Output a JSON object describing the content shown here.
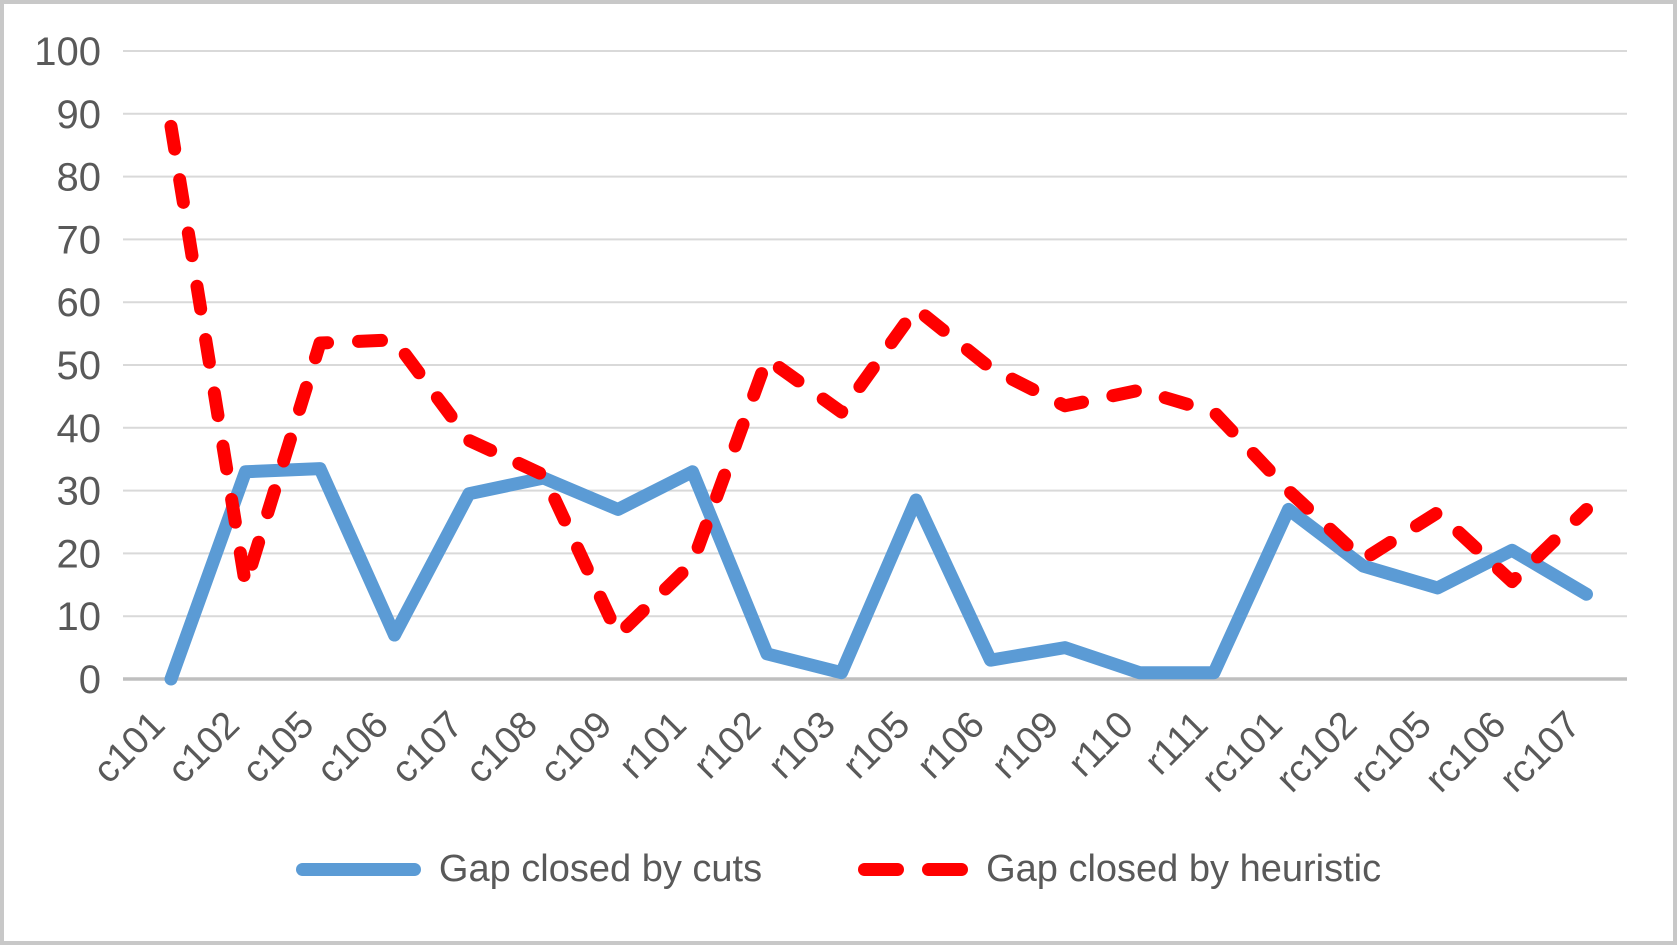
{
  "chart_data": {
    "type": "line",
    "title": "",
    "xlabel": "",
    "ylabel": "",
    "categories": [
      "c101",
      "c102",
      "c105",
      "c106",
      "c107",
      "c108",
      "c109",
      "r101",
      "r102",
      "r103",
      "r105",
      "r106",
      "r109",
      "r110",
      "r111",
      "rc101",
      "rc102",
      "rc105",
      "rc106",
      "rc107"
    ],
    "series": [
      {
        "name": "Gap closed by cuts",
        "color": "#5B9BD5",
        "style": "solid",
        "values": [
          0,
          33,
          33.5,
          7,
          29.5,
          32,
          27,
          33,
          4,
          1,
          28.5,
          3,
          5,
          1,
          1,
          27,
          18,
          14.5,
          20.5,
          13.5
        ]
      },
      {
        "name": "Gap closed by heuristic",
        "color": "#FF0000",
        "style": "dashed",
        "values": [
          88,
          15,
          53.5,
          54,
          38,
          32.5,
          7,
          18.5,
          51,
          42.5,
          59,
          49.5,
          43.5,
          46,
          42.5,
          30,
          19,
          26.5,
          15.5,
          27
        ]
      }
    ],
    "ylim": [
      0,
      100
    ],
    "yticks": [
      0,
      10,
      20,
      30,
      40,
      50,
      60,
      70,
      80,
      90,
      100
    ],
    "grid": "horizontal-only",
    "legend_position": "bottom-center",
    "x_label_rotation_deg": -45
  },
  "colors": {
    "background": "#ffffff",
    "frame_border": "#c8c8c8",
    "gridline": "#d9d9d9",
    "axis_line": "#bfbfbf",
    "axis_text": "#595959"
  }
}
